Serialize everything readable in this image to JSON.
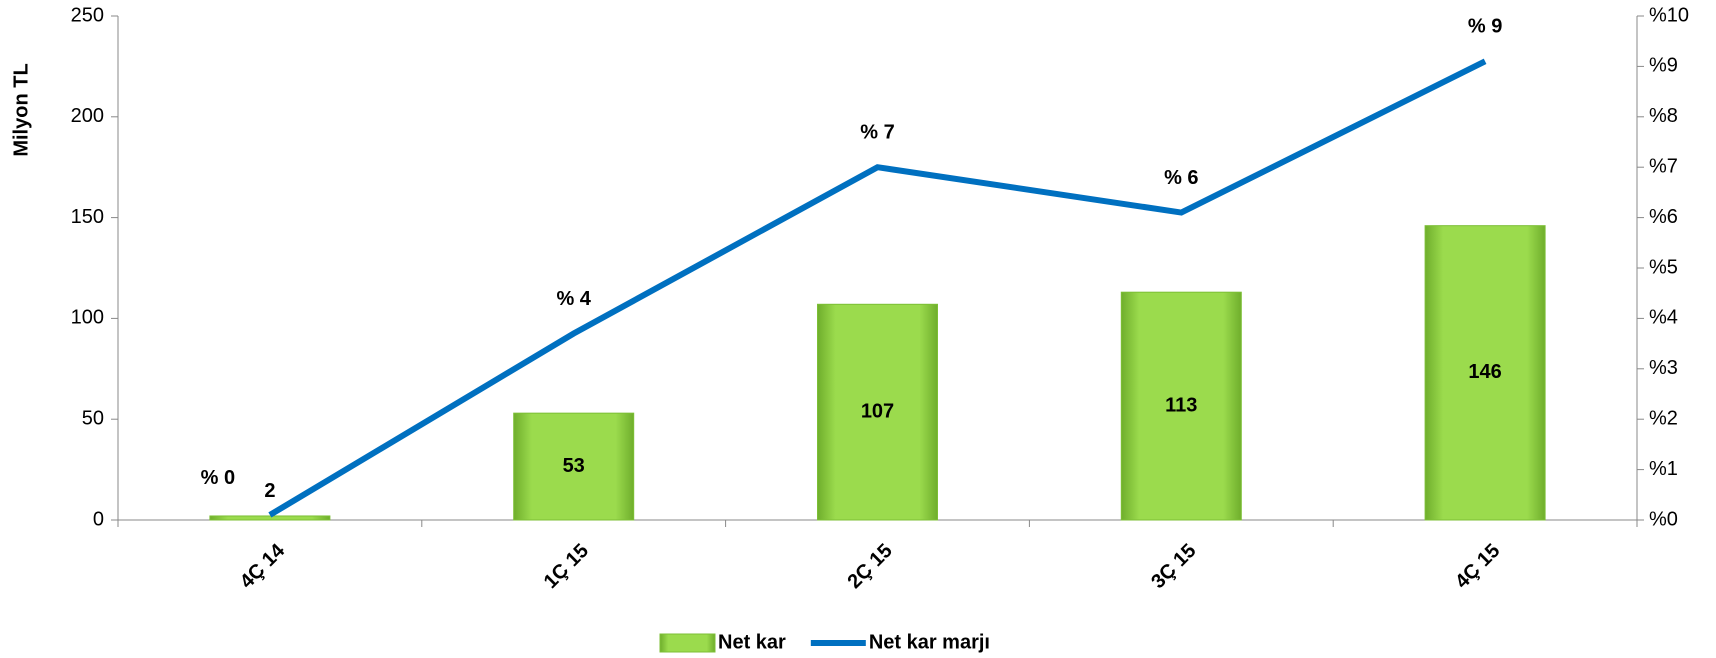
{
  "chart_data": {
    "type": "bar",
    "y_label": "Milyon TL",
    "categories": [
      "4Ç 14",
      "1Ç 15",
      "2Ç 15",
      "3Ç 15",
      "4Ç 15"
    ],
    "series": [
      {
        "name": "Net kar",
        "type": "bar",
        "color": "#9bdb4d",
        "values": [
          2,
          53,
          107,
          113,
          146
        ]
      },
      {
        "name": "Net kar marjı",
        "type": "line",
        "axis": "y2",
        "color": "#0070c0",
        "values": [
          0.1,
          3.7,
          7.0,
          6.1,
          9.1
        ],
        "value_labels": [
          "% 0",
          "% 4",
          "% 7",
          "% 6",
          "% 9"
        ]
      }
    ],
    "ylim": [
      0,
      250
    ],
    "yticks": [
      0,
      50,
      100,
      150,
      200,
      250
    ],
    "y2lim": [
      0,
      10
    ],
    "y2ticks": [
      {
        "value": 0,
        "label": "%0"
      },
      {
        "value": 1,
        "label": "%1"
      },
      {
        "value": 2,
        "label": "%2"
      },
      {
        "value": 3,
        "label": "%3"
      },
      {
        "value": 4,
        "label": "%4"
      },
      {
        "value": 5,
        "label": "%5"
      },
      {
        "value": 6,
        "label": "%6"
      },
      {
        "value": 7,
        "label": "%7"
      },
      {
        "value": 8,
        "label": "%8"
      },
      {
        "value": 9,
        "label": "%9"
      },
      {
        "value": 10,
        "label": "%10"
      }
    ],
    "legend": "bottom",
    "grid": false
  }
}
